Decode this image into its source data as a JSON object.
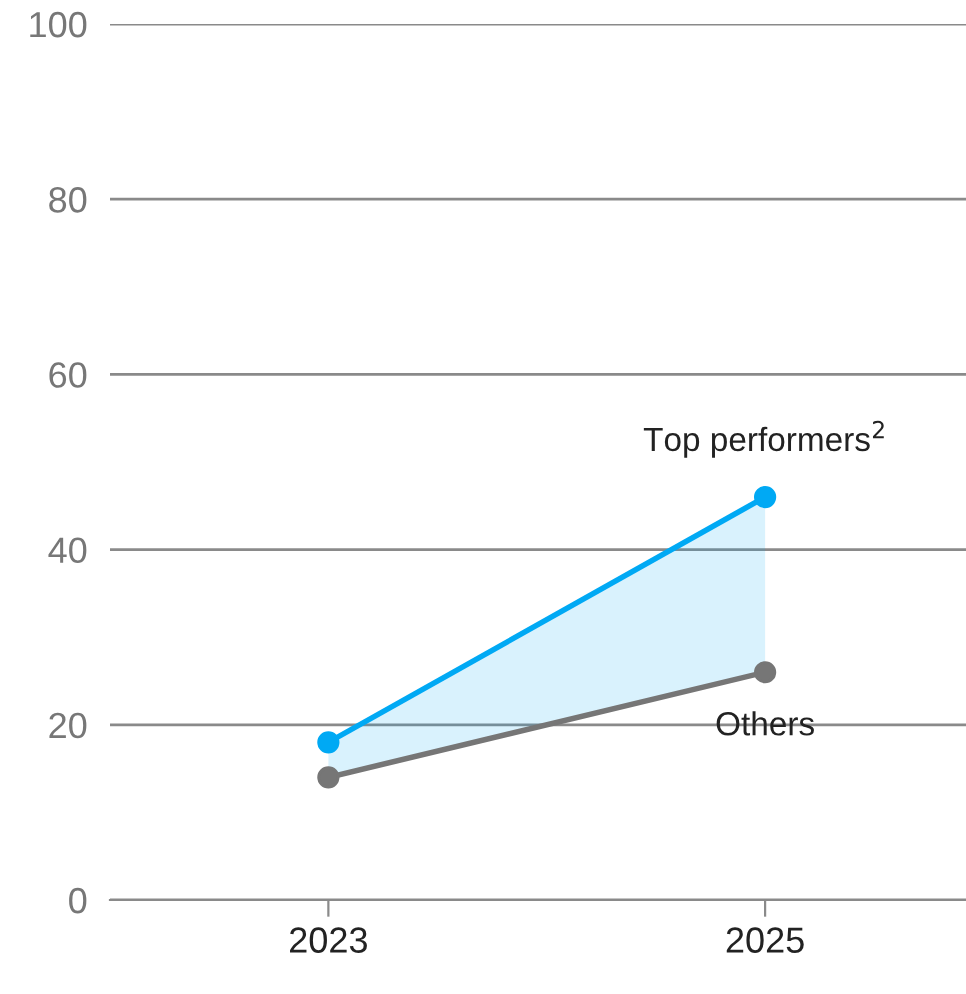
{
  "chart_data": {
    "type": "line",
    "categories": [
      "2023",
      "2025"
    ],
    "series": [
      {
        "name": "Top performers$^{2}$",
        "color": "#00a9f4",
        "values": [
          18,
          46
        ],
        "lower": [
          14,
          26
        ],
        "upper": [
          18,
          46
        ]
      },
      {
        "name": "Others",
        "color": "#767676",
        "values": [
          14,
          26
        ]
      }
    ],
    "ylim": [
      0,
      100
    ],
    "yticks": [
      0,
      20,
      40,
      60,
      80,
      100
    ],
    "grid": "y",
    "legend": false,
    "marker": "circle",
    "line_style": "solid"
  }
}
